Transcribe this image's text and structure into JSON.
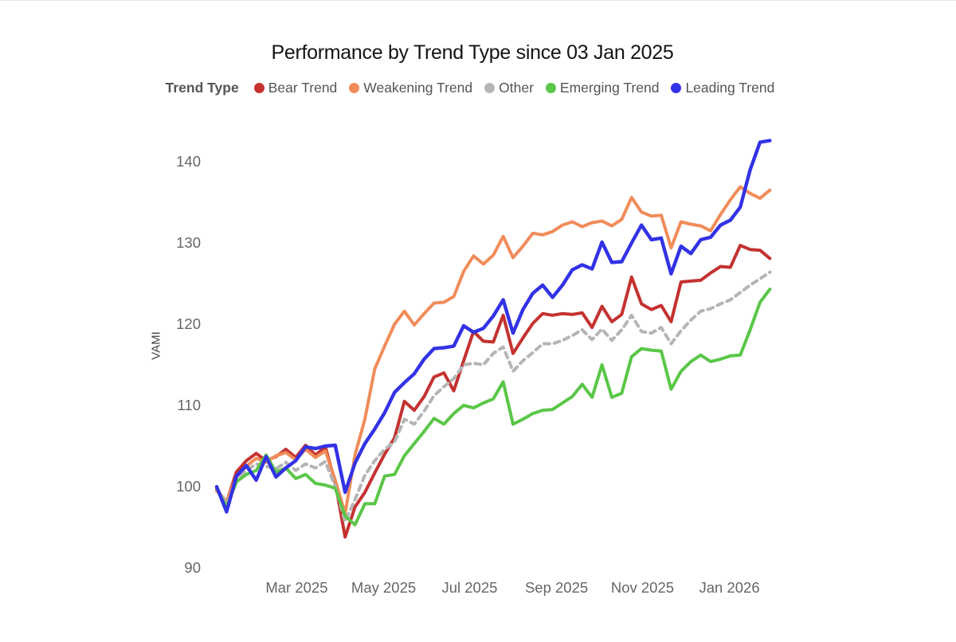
{
  "title": "Performance by Trend Type since 03 Jan 2025",
  "legend": {
    "title": "Trend Type",
    "items": [
      {
        "label": "Bear Trend",
        "color": "#c43230",
        "style": "solid"
      },
      {
        "label": "Weakening Trend",
        "color": "#f08c5a",
        "style": "solid"
      },
      {
        "label": "Other",
        "color": "#b5b5b5",
        "style": "dashed"
      },
      {
        "label": "Emerging Trend",
        "color": "#5ac648",
        "style": "solid"
      },
      {
        "label": "Leading Trend",
        "color": "#3232e6",
        "style": "solid"
      }
    ]
  },
  "y_axis": {
    "title": "VAMI",
    "ticks": [
      90,
      100,
      110,
      120,
      130,
      140
    ]
  },
  "x_axis": {
    "ticks": [
      {
        "label": "Mar 2025",
        "week": 8.1
      },
      {
        "label": "May 2025",
        "week": 16.9
      },
      {
        "label": "Jul 2025",
        "week": 25.6
      },
      {
        "label": "Sep 2025",
        "week": 34.4
      },
      {
        "label": "Nov 2025",
        "week": 43.1
      },
      {
        "label": "Jan 2026",
        "week": 51.9
      }
    ]
  },
  "chart_data": {
    "type": "line",
    "title": "Performance by Trend Type since 03 Jan 2025",
    "ylabel": "VAMI",
    "x_unit": "weeks since 03 Jan 2025",
    "start_date": "03 Jan 2025",
    "points_per_series": 57,
    "ylim": [
      88.5,
      144
    ],
    "grid": false,
    "legend_position": "top",
    "x_tick_labels": [
      "Mar 2025",
      "May 2025",
      "Jul 2025",
      "Sep 2025",
      "Nov 2025",
      "Jan 2026"
    ],
    "series": [
      {
        "name": "Bear Trend",
        "color": "#c43230",
        "style": "solid",
        "values": [
          99.6,
          98.1,
          101.8,
          103.2,
          104.1,
          103.2,
          103.7,
          104.6,
          103.6,
          105.1,
          103.9,
          104.9,
          100.5,
          93.8,
          97.5,
          99.3,
          101.7,
          104.0,
          106.0,
          110.5,
          109.4,
          111.1,
          113.5,
          114.0,
          111.8,
          115.5,
          119.1,
          117.9,
          117.8,
          121.1,
          116.4,
          118.3,
          120.1,
          121.3,
          121.1,
          121.3,
          121.2,
          121.4,
          119.6,
          122.2,
          120.3,
          121.2,
          125.8,
          122.5,
          121.8,
          122.3,
          120.3,
          125.2,
          125.3,
          125.4,
          126.3,
          127.1,
          127.0,
          129.7,
          129.2,
          129.1,
          128.1
        ]
      },
      {
        "name": "Weakening Trend",
        "color": "#f08c5a",
        "style": "solid",
        "values": [
          99.5,
          98.2,
          101.2,
          102.5,
          103.5,
          103.0,
          103.8,
          104.2,
          103.3,
          104.6,
          103.6,
          104.4,
          100.8,
          96.7,
          103.9,
          108.3,
          114.5,
          117.3,
          120.0,
          121.6,
          119.9,
          121.3,
          122.6,
          122.7,
          123.4,
          126.5,
          128.4,
          127.4,
          128.5,
          130.8,
          128.2,
          129.6,
          131.2,
          131.0,
          131.4,
          132.2,
          132.6,
          132.0,
          132.5,
          132.7,
          132.1,
          132.9,
          135.6,
          133.8,
          133.3,
          133.4,
          129.4,
          132.6,
          132.3,
          132.1,
          131.5,
          133.5,
          135.3,
          136.9,
          136.1,
          135.5,
          136.5
        ]
      },
      {
        "name": "Other",
        "color": "#b5b5b5",
        "style": "dashed",
        "values": [
          99.9,
          97.8,
          100.8,
          102.0,
          102.8,
          102.5,
          102.2,
          103.0,
          102.0,
          102.8,
          102.3,
          103.1,
          100.0,
          95.7,
          98.4,
          101.4,
          103.2,
          104.6,
          105.5,
          108.3,
          107.7,
          109.3,
          111.2,
          112.3,
          113.3,
          115.0,
          115.2,
          115.0,
          116.4,
          117.2,
          114.2,
          115.5,
          116.5,
          117.6,
          117.6,
          118.0,
          118.6,
          119.3,
          118.1,
          119.4,
          118.0,
          119.3,
          121.1,
          119.1,
          118.9,
          119.6,
          117.6,
          119.2,
          120.5,
          121.6,
          121.9,
          122.5,
          123.0,
          123.9,
          124.8,
          125.6,
          126.4
        ]
      },
      {
        "name": "Emerging Trend",
        "color": "#5ac648",
        "style": "solid",
        "values": [
          99.8,
          97.5,
          100.6,
          101.5,
          102.0,
          103.9,
          101.8,
          102.3,
          101.0,
          101.5,
          100.4,
          100.2,
          99.8,
          96.4,
          95.3,
          97.9,
          97.9,
          101.3,
          101.5,
          103.8,
          105.3,
          106.8,
          108.4,
          107.7,
          109.0,
          110.0,
          109.7,
          110.3,
          110.8,
          112.9,
          107.7,
          108.3,
          109.0,
          109.4,
          109.5,
          110.3,
          111.1,
          112.6,
          111.0,
          115.0,
          111.0,
          111.5,
          116.0,
          117.0,
          116.8,
          116.7,
          112.0,
          114.2,
          115.4,
          116.2,
          115.4,
          115.7,
          116.1,
          116.2,
          119.3,
          122.7,
          124.3
        ]
      },
      {
        "name": "Leading Trend",
        "color": "#3232e6",
        "style": "solid",
        "values": [
          100.0,
          96.9,
          101.3,
          102.6,
          100.8,
          103.7,
          101.2,
          102.3,
          103.2,
          104.9,
          104.7,
          105.0,
          105.1,
          99.3,
          102.9,
          105.3,
          107.1,
          109.1,
          111.6,
          112.8,
          113.9,
          115.7,
          117.0,
          117.1,
          117.3,
          119.8,
          119.0,
          119.5,
          121.0,
          123.0,
          118.9,
          121.8,
          123.8,
          124.8,
          123.3,
          124.8,
          126.7,
          127.3,
          126.8,
          130.1,
          127.6,
          127.7,
          130.0,
          132.2,
          130.4,
          130.6,
          126.2,
          129.6,
          128.7,
          130.4,
          130.7,
          132.2,
          132.8,
          134.4,
          139.0,
          142.4,
          142.6
        ]
      }
    ]
  }
}
